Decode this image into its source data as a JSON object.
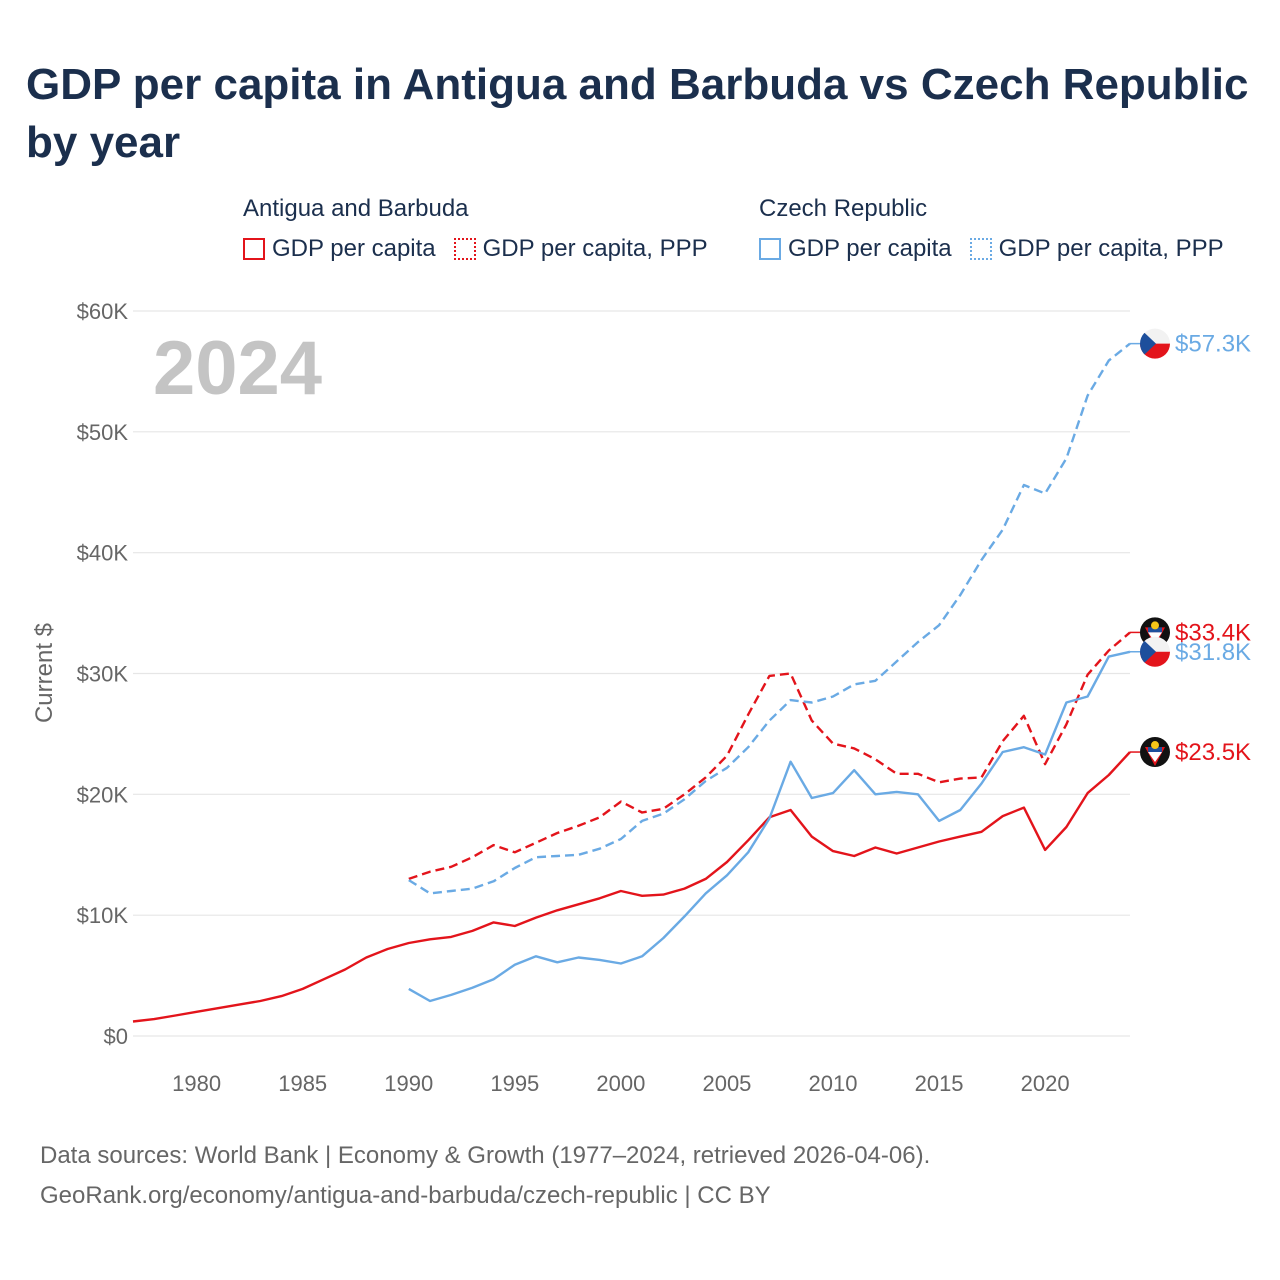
{
  "title": "GDP per capita in Antigua and Barbuda vs Czech Republic by year",
  "legend": {
    "groups": [
      {
        "name": "Antigua and Barbuda",
        "color": "#e3141b",
        "items": [
          {
            "label": "GDP per capita",
            "style": "solid"
          },
          {
            "label": "GDP per capita, PPP",
            "style": "dotted"
          }
        ]
      },
      {
        "name": "Czech Republic",
        "color": "#6aaae4",
        "items": [
          {
            "label": "GDP per capita",
            "style": "solid"
          },
          {
            "label": "GDP per capita, PPP",
            "style": "dotted"
          }
        ]
      }
    ]
  },
  "year_watermark": "2024",
  "footer": {
    "line1": "Data sources: World Bank | Economy & Growth (1977–2024, retrieved 2026-04-06).",
    "line2": "GeoRank.org/economy/antigua-and-barbuda/czech-republic | CC BY"
  },
  "colors": {
    "antigua": "#e3141b",
    "czech": "#6aaae4",
    "title": "#1b2f4d",
    "axis_text": "#666666",
    "grid": "#e6e6e6"
  },
  "chart_data": {
    "type": "line",
    "title": "GDP per capita in Antigua and Barbuda vs Czech Republic by year",
    "xlabel": "",
    "ylabel": "Current $",
    "xlim": [
      1977,
      2024
    ],
    "ylim": [
      0,
      60000
    ],
    "x_ticks": [
      1980,
      1985,
      1990,
      1995,
      2000,
      2005,
      2010,
      2015,
      2020
    ],
    "y_ticks": [
      0,
      10000,
      20000,
      30000,
      40000,
      50000,
      60000
    ],
    "y_tick_labels": [
      "$0",
      "$10K",
      "$20K",
      "$30K",
      "$40K",
      "$50K",
      "$60K"
    ],
    "grid": true,
    "series": [
      {
        "name": "Antigua and Barbuda — GDP per capita",
        "country": "antigua",
        "dash": false,
        "end_label": "$23.5K",
        "x": [
          1977,
          1978,
          1979,
          1980,
          1981,
          1982,
          1983,
          1984,
          1985,
          1986,
          1987,
          1988,
          1989,
          1990,
          1991,
          1992,
          1993,
          1994,
          1995,
          1996,
          1997,
          1998,
          1999,
          2000,
          2001,
          2002,
          2003,
          2004,
          2005,
          2006,
          2007,
          2008,
          2009,
          2010,
          2011,
          2012,
          2013,
          2014,
          2015,
          2016,
          2017,
          2018,
          2019,
          2020,
          2021,
          2022,
          2023,
          2024
        ],
        "values": [
          1200,
          1400,
          1700,
          2000,
          2300,
          2600,
          2900,
          3300,
          3900,
          4700,
          5500,
          6500,
          7200,
          7700,
          8000,
          8200,
          8700,
          9400,
          9100,
          9800,
          10400,
          10900,
          11400,
          12000,
          11600,
          11700,
          12200,
          13000,
          14400,
          16200,
          18100,
          18700,
          16500,
          15300,
          14900,
          15600,
          15100,
          15600,
          16100,
          16500,
          16900,
          18200,
          18900,
          15400,
          17300,
          20100,
          21600,
          23500
        ]
      },
      {
        "name": "Antigua and Barbuda — GDP per capita, PPP",
        "country": "antigua",
        "dash": true,
        "end_label": "$33.4K",
        "x": [
          1990,
          1991,
          1992,
          1993,
          1994,
          1995,
          1996,
          1997,
          1998,
          1999,
          2000,
          2001,
          2002,
          2003,
          2004,
          2005,
          2006,
          2007,
          2008,
          2009,
          2010,
          2011,
          2012,
          2013,
          2014,
          2015,
          2016,
          2017,
          2018,
          2019,
          2020,
          2021,
          2022,
          2023,
          2024
        ],
        "values": [
          13000,
          13600,
          14000,
          14800,
          15800,
          15200,
          16000,
          16800,
          17400,
          18100,
          19400,
          18500,
          18800,
          20000,
          21400,
          23200,
          26600,
          29800,
          30000,
          26100,
          24200,
          23800,
          22900,
          21700,
          21700,
          21000,
          21300,
          21400,
          24400,
          26500,
          22500,
          25800,
          29900,
          31900,
          33400
        ]
      },
      {
        "name": "Czech Republic — GDP per capita",
        "country": "czech",
        "dash": false,
        "end_label": "$31.8K",
        "x": [
          1990,
          1991,
          1992,
          1993,
          1994,
          1995,
          1996,
          1997,
          1998,
          1999,
          2000,
          2001,
          2002,
          2003,
          2004,
          2005,
          2006,
          2007,
          2008,
          2009,
          2010,
          2011,
          2012,
          2013,
          2014,
          2015,
          2016,
          2017,
          2018,
          2019,
          2020,
          2021,
          2022,
          2023,
          2024
        ],
        "values": [
          3900,
          2900,
          3400,
          4000,
          4700,
          5900,
          6600,
          6100,
          6500,
          6300,
          6000,
          6600,
          8100,
          9900,
          11800,
          13300,
          15200,
          18000,
          22700,
          19700,
          20100,
          22000,
          20000,
          20200,
          20000,
          17800,
          18700,
          20900,
          23500,
          23900,
          23300,
          27600,
          28100,
          31400,
          31800
        ]
      },
      {
        "name": "Czech Republic — GDP per capita, PPP",
        "country": "czech",
        "dash": true,
        "end_label": "$57.3K",
        "x": [
          1990,
          1991,
          1992,
          1993,
          1994,
          1995,
          1996,
          1997,
          1998,
          1999,
          2000,
          2001,
          2002,
          2003,
          2004,
          2005,
          2006,
          2007,
          2008,
          2009,
          2010,
          2011,
          2012,
          2013,
          2014,
          2015,
          2016,
          2017,
          2018,
          2019,
          2020,
          2021,
          2022,
          2023,
          2024
        ],
        "values": [
          12900,
          11800,
          12000,
          12200,
          12800,
          13900,
          14800,
          14900,
          15000,
          15500,
          16300,
          17800,
          18400,
          19600,
          21100,
          22200,
          23900,
          26100,
          27800,
          27600,
          28100,
          29100,
          29400,
          31000,
          32600,
          34000,
          36500,
          39400,
          41900,
          45600,
          44900,
          47800,
          53000,
          55900,
          57300
        ]
      }
    ]
  }
}
